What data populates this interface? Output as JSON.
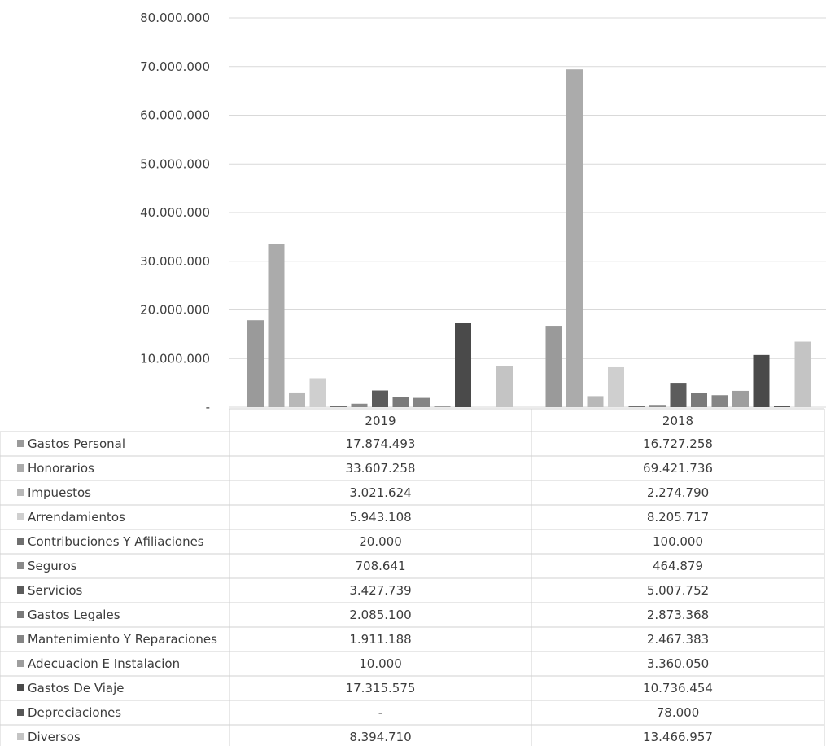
{
  "chart_data": {
    "type": "bar",
    "categories": [
      "2019",
      "2018"
    ],
    "ylim": [
      0,
      80000000
    ],
    "y_ticks": [
      "80.000.000",
      "70.000.000",
      "60.000.000",
      "50.000.000",
      "40.000.000",
      "30.000.000",
      "20.000.000",
      "10.000.000",
      "-"
    ],
    "y_tick_values": [
      80000000,
      70000000,
      60000000,
      50000000,
      40000000,
      30000000,
      20000000,
      10000000,
      0
    ],
    "grid": true,
    "legend": "table-bottom",
    "series": [
      {
        "name": "Gastos Personal",
        "values": [
          17874493,
          16727258
        ],
        "labels": [
          "17.874.493",
          "16.727.258"
        ],
        "color": "#9a9a9a"
      },
      {
        "name": "Honorarios",
        "values": [
          33607258,
          69421736
        ],
        "labels": [
          "33.607.258",
          "69.421.736"
        ],
        "color": "#ababab"
      },
      {
        "name": "Impuestos",
        "values": [
          3021624,
          2274790
        ],
        "labels": [
          "3.021.624",
          "2.274.790"
        ],
        "color": "#b8b8b8"
      },
      {
        "name": "Arrendamientos",
        "values": [
          5943108,
          8205717
        ],
        "labels": [
          "5.943.108",
          "8.205.717"
        ],
        "color": "#cfcfcf"
      },
      {
        "name": "Contribuciones Y Afiliaciones",
        "values": [
          20000,
          100000
        ],
        "labels": [
          "20.000",
          "100.000"
        ],
        "color": "#6f6f6f"
      },
      {
        "name": "Seguros",
        "values": [
          708641,
          464879
        ],
        "labels": [
          "708.641",
          "464.879"
        ],
        "color": "#8a8a8a"
      },
      {
        "name": "Servicios",
        "values": [
          3427739,
          5007752
        ],
        "labels": [
          "3.427.739",
          "5.007.752"
        ],
        "color": "#5c5c5c"
      },
      {
        "name": "Gastos Legales",
        "values": [
          2085100,
          2873368
        ],
        "labels": [
          "2.085.100",
          "2.873.368"
        ],
        "color": "#7a7a7a"
      },
      {
        "name": "Mantenimiento Y Reparaciones",
        "values": [
          1911188,
          2467383
        ],
        "labels": [
          "1.911.188",
          "2.467.383"
        ],
        "color": "#858585"
      },
      {
        "name": "Adecuacion E Instalacion",
        "values": [
          10000,
          3360050
        ],
        "labels": [
          "10.000",
          "3.360.050"
        ],
        "color": "#9e9e9e"
      },
      {
        "name": "Gastos De Viaje",
        "values": [
          17315575,
          10736454
        ],
        "labels": [
          "17.315.575",
          "10.736.454"
        ],
        "color": "#4a4a4a"
      },
      {
        "name": "Depreciaciones",
        "values": [
          0,
          78000
        ],
        "labels": [
          "-",
          "78.000"
        ],
        "color": "#575757"
      },
      {
        "name": "Diversos",
        "values": [
          8394710,
          13466957
        ],
        "labels": [
          "8.394.710",
          "13.466.957"
        ],
        "color": "#c4c4c4"
      }
    ]
  }
}
